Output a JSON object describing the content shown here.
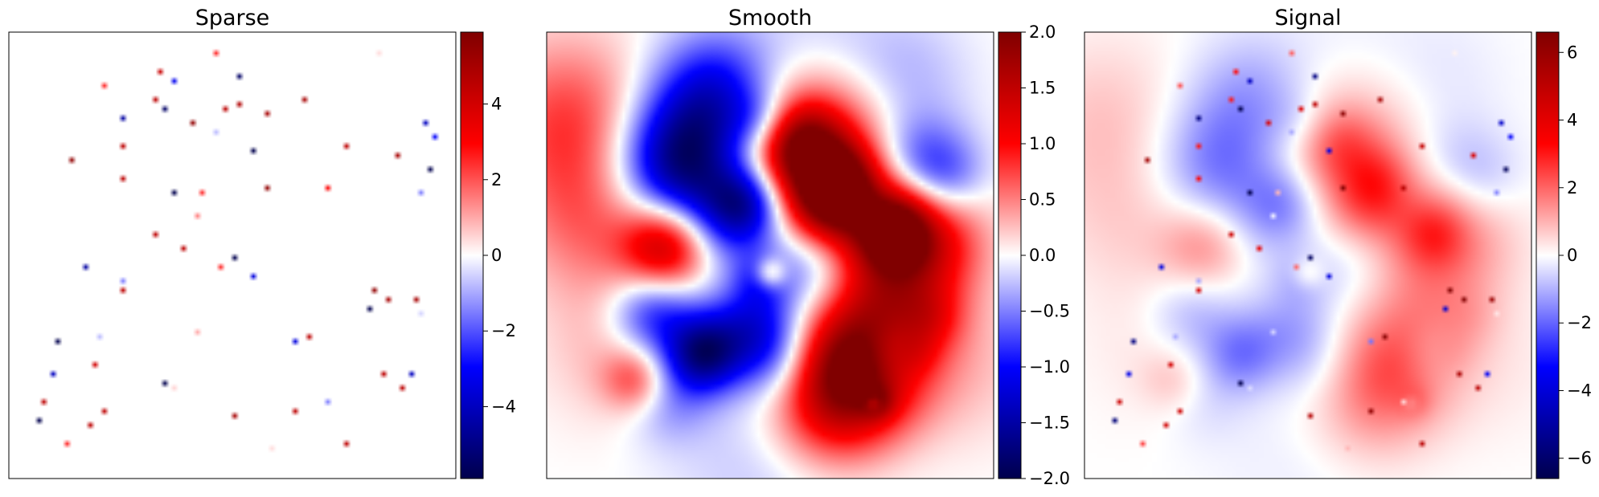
{
  "chart_data": [
    {
      "type": "heatmap",
      "title": "Sparse",
      "colormap": "seismic",
      "colorbar": {
        "range": [
          -5.9,
          5.9
        ],
        "ticks": [
          4,
          2,
          0,
          -2,
          -4
        ],
        "tick_labels": [
          "4",
          "2",
          "0",
          "−2",
          "−4"
        ]
      },
      "grid": false,
      "points": [
        [
          0.46,
          0.05,
          2.5
        ],
        [
          0.83,
          0.05,
          0.4
        ],
        [
          0.21,
          0.12,
          2.5
        ],
        [
          0.34,
          0.09,
          4.2
        ],
        [
          0.37,
          0.11,
          -3.2
        ],
        [
          0.52,
          0.1,
          -5.5
        ],
        [
          0.33,
          0.15,
          4.5
        ],
        [
          0.35,
          0.17,
          -5.5
        ],
        [
          0.48,
          0.17,
          4.5
        ],
        [
          0.52,
          0.16,
          4.8
        ],
        [
          0.58,
          0.18,
          5.0
        ],
        [
          0.66,
          0.15,
          5.0
        ],
        [
          0.26,
          0.19,
          -4.5
        ],
        [
          0.41,
          0.2,
          5.5
        ],
        [
          0.46,
          0.22,
          -0.8
        ],
        [
          0.93,
          0.2,
          -4.0
        ],
        [
          0.95,
          0.23,
          -3.0
        ],
        [
          0.26,
          0.25,
          4.5
        ],
        [
          0.55,
          0.27,
          -5.9
        ],
        [
          0.75,
          0.26,
          4.5
        ],
        [
          0.14,
          0.29,
          5.5
        ],
        [
          0.87,
          0.28,
          5.0
        ],
        [
          0.94,
          0.31,
          -5.9
        ],
        [
          0.26,
          0.33,
          4.5
        ],
        [
          0.58,
          0.35,
          5.5
        ],
        [
          0.37,
          0.36,
          -5.9
        ],
        [
          0.43,
          0.36,
          2.5
        ],
        [
          0.71,
          0.35,
          3.0
        ],
        [
          0.92,
          0.36,
          -1.5
        ],
        [
          0.42,
          0.41,
          1.5
        ],
        [
          0.33,
          0.45,
          4.5
        ],
        [
          0.39,
          0.48,
          4.5
        ],
        [
          0.5,
          0.51,
          -5.9
        ],
        [
          0.17,
          0.53,
          -4.5
        ],
        [
          0.47,
          0.53,
          2.5
        ],
        [
          0.55,
          0.55,
          -3.5
        ],
        [
          0.26,
          0.56,
          -1.5
        ],
        [
          0.25,
          0.58,
          4.5
        ],
        [
          0.82,
          0.58,
          5.5
        ],
        [
          0.85,
          0.6,
          5.0
        ],
        [
          0.91,
          0.6,
          5.0
        ],
        [
          0.81,
          0.62,
          -5.9
        ],
        [
          0.92,
          0.63,
          -0.5
        ],
        [
          0.42,
          0.67,
          1.0
        ],
        [
          0.2,
          0.68,
          -0.8
        ],
        [
          0.11,
          0.69,
          -5.9
        ],
        [
          0.67,
          0.68,
          4.5
        ],
        [
          0.64,
          0.69,
          -3.5
        ],
        [
          0.19,
          0.74,
          4.0
        ],
        [
          0.1,
          0.77,
          -4.0
        ],
        [
          0.84,
          0.77,
          4.5
        ],
        [
          0.9,
          0.77,
          -4.0
        ],
        [
          0.88,
          0.8,
          4.5
        ],
        [
          0.35,
          0.79,
          -5.9
        ],
        [
          0.37,
          0.8,
          0.5
        ],
        [
          0.08,
          0.83,
          4.5
        ],
        [
          0.71,
          0.83,
          -1.5
        ],
        [
          0.21,
          0.85,
          4.5
        ],
        [
          0.51,
          0.86,
          5.0
        ],
        [
          0.64,
          0.85,
          4.5
        ],
        [
          0.07,
          0.87,
          -5.9
        ],
        [
          0.18,
          0.88,
          4.5
        ],
        [
          0.76,
          0.92,
          4.5
        ],
        [
          0.13,
          0.92,
          2.5
        ],
        [
          0.59,
          0.93,
          0.4
        ]
      ]
    },
    {
      "type": "heatmap",
      "title": "Smooth",
      "colormap": "seismic",
      "colorbar": {
        "range": [
          -2.0,
          2.0
        ],
        "ticks": [
          2.0,
          1.5,
          1.0,
          0.5,
          0.0,
          -0.5,
          -1.0,
          -1.5,
          -2.0
        ],
        "tick_labels": [
          "2.0",
          "1.5",
          "1.0",
          "0.5",
          "0.0",
          "−0.5",
          "−1.0",
          "−1.5",
          "−2.0"
        ]
      },
      "grid": false,
      "blobs": [
        [
          0.05,
          0.2,
          0.13,
          0.75
        ],
        [
          0.1,
          0.42,
          0.12,
          0.55
        ],
        [
          0.18,
          0.7,
          0.12,
          0.35
        ],
        [
          0.6,
          0.05,
          0.12,
          -0.25
        ],
        [
          0.8,
          0.1,
          0.1,
          -0.3
        ],
        [
          0.3,
          0.3,
          0.1,
          -1.8
        ],
        [
          0.38,
          0.15,
          0.1,
          -1.3
        ],
        [
          0.45,
          0.38,
          0.06,
          -1.3
        ],
        [
          0.27,
          0.48,
          0.07,
          1.5
        ],
        [
          0.4,
          0.44,
          0.08,
          -0.7
        ],
        [
          0.57,
          0.27,
          0.13,
          1.5
        ],
        [
          0.57,
          0.25,
          0.06,
          1.0
        ],
        [
          0.68,
          0.38,
          0.09,
          0.9
        ],
        [
          0.76,
          0.55,
          0.11,
          1.2
        ],
        [
          0.85,
          0.45,
          0.09,
          0.9
        ],
        [
          0.83,
          0.3,
          0.08,
          -0.9
        ],
        [
          0.9,
          0.33,
          0.06,
          -0.4
        ],
        [
          0.6,
          0.52,
          0.08,
          -0.9
        ],
        [
          0.46,
          0.65,
          0.07,
          -0.9
        ],
        [
          0.24,
          0.63,
          0.07,
          -1.1
        ],
        [
          0.35,
          0.72,
          0.06,
          -1.6
        ],
        [
          0.51,
          0.73,
          0.07,
          -0.7
        ],
        [
          0.69,
          0.75,
          0.1,
          1.9
        ],
        [
          0.63,
          0.85,
          0.1,
          0.8
        ],
        [
          0.27,
          0.82,
          0.07,
          -0.5
        ],
        [
          0.2,
          0.78,
          0.05,
          0.7
        ],
        [
          0.78,
          0.72,
          0.05,
          -0.6
        ],
        [
          0.48,
          0.55,
          0.04,
          -0.5
        ],
        [
          0.5,
          0.54,
          0.025,
          0.9
        ],
        [
          0.86,
          0.64,
          0.05,
          0.4
        ],
        [
          0.82,
          0.72,
          0.04,
          0.4
        ],
        [
          0.74,
          0.83,
          0.025,
          0.5
        ],
        [
          0.73,
          0.83,
          0.012,
          -0.6
        ],
        [
          0.78,
          0.46,
          0.05,
          1.0
        ],
        [
          0.8,
          0.4,
          0.05,
          0.4
        ],
        [
          0.63,
          0.38,
          0.06,
          0.9
        ],
        [
          0.66,
          0.32,
          0.05,
          0.6
        ],
        [
          0.48,
          0.2,
          0.05,
          -0.5
        ],
        [
          0.5,
          0.95,
          0.15,
          -0.25
        ],
        [
          0.92,
          0.75,
          0.12,
          0.25
        ]
      ]
    },
    {
      "type": "heatmap",
      "title": "Signal",
      "colormap": "seismic",
      "colorbar": {
        "range": [
          -6.6,
          6.6
        ],
        "ticks": [
          6,
          4,
          2,
          0,
          -2,
          -4,
          -6
        ],
        "tick_labels": [
          "6",
          "4",
          "2",
          "0",
          "−2",
          "−4",
          "−6"
        ]
      },
      "grid": false,
      "composition": "Sparse + Smooth"
    }
  ]
}
